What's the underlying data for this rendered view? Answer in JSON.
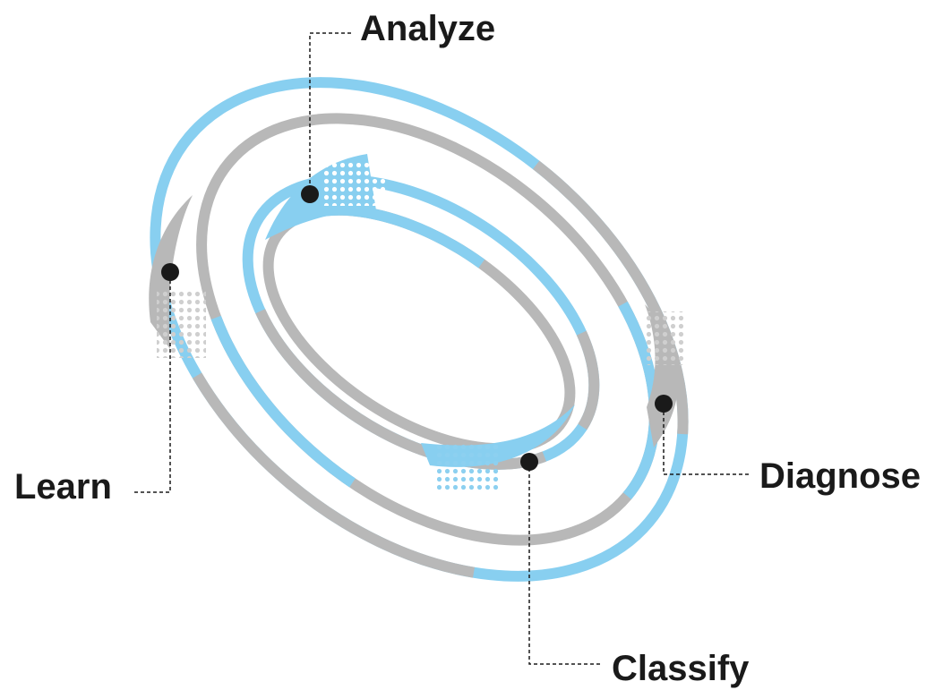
{
  "nodes": [
    {
      "label": "Analyze"
    },
    {
      "label": "Learn"
    },
    {
      "label": "Diagnose"
    },
    {
      "label": "Classify"
    }
  ]
}
